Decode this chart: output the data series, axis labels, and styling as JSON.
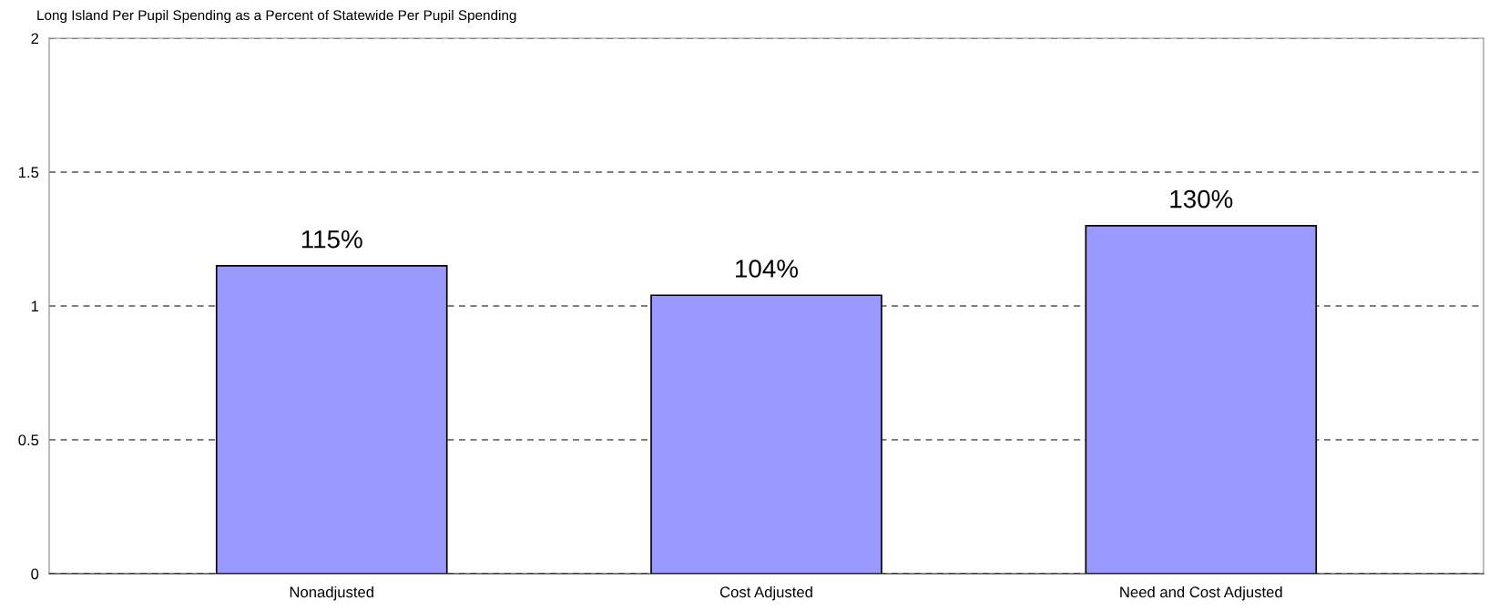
{
  "chart_data": {
    "type": "bar",
    "title": "Long Island Per Pupil Spending as a Percent of Statewide Per Pupil Spending",
    "categories": [
      "Nonadjusted",
      "Cost Adjusted",
      "Need and Cost Adjusted"
    ],
    "values": [
      1.15,
      1.04,
      1.3
    ],
    "value_labels": [
      "115%",
      "104%",
      "130%"
    ],
    "color": "#9999ff",
    "ylim": [
      0,
      2
    ],
    "yticks": [
      0,
      0.5,
      1,
      1.5,
      2
    ],
    "grid": "y"
  }
}
